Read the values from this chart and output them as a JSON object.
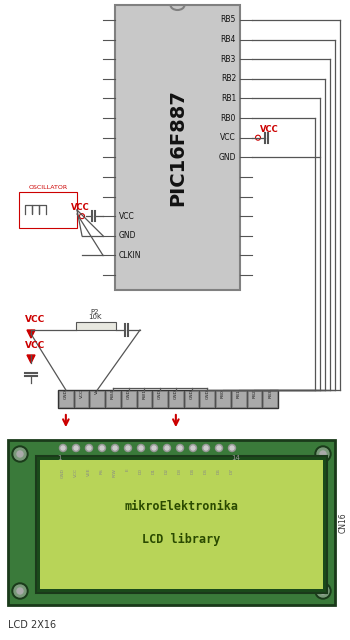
{
  "bg_color": "#ffffff",
  "pic_color": "#c8c8c8",
  "pic_border": "#808080",
  "pic_text": "PIC16F887",
  "right_pin_names": [
    "RB5",
    "RB4",
    "RB3",
    "RB2",
    "RB1",
    "RB0",
    "VCC",
    "GND"
  ],
  "left_pin_names": [
    "VCC",
    "GND",
    "CLKIN"
  ],
  "osc_label": "OSCILLATOR",
  "vcc_color": "#cc0000",
  "wire_color": "#555555",
  "lcd_bg": "#3a7a3a",
  "lcd_dark_bg": "#1a4a1a",
  "lcd_screen_bg": "#b8d458",
  "lcd_inner_bg": "#c8dc60",
  "lcd_text1": "mikroElektronika",
  "lcd_text2": "LCD library",
  "lcd_label": "LCD 2X16",
  "cn16_label": "CN16",
  "connector_dark": "#404040",
  "connector_mid": "#808080",
  "connector_light": "#b0b0b0",
  "resistor_label": "P2\n10K",
  "arrow_color": "#cc0000",
  "pin_labels_conn": [
    "GND",
    "VCC",
    "Vo",
    "RW4",
    "GND",
    "RW1",
    "GND",
    "GND",
    "GND",
    "GND",
    "RB0",
    "RB1",
    "RB2",
    "RB3"
  ],
  "pin_labels_lcd": [
    "GND",
    "VCC",
    "VEE",
    "RS",
    "R/W",
    "E",
    "D0",
    "D1",
    "D2",
    "D3",
    "D4",
    "D5",
    "D6",
    "D7"
  ]
}
